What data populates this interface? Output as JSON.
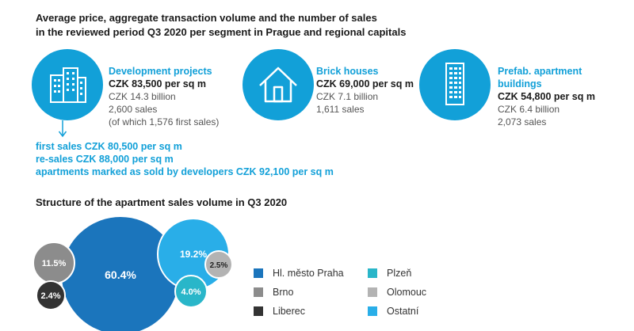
{
  "header": {
    "line1": "Average price, aggregate transaction volume and the number of sales",
    "line2": "in the reviewed period Q3 2020 per segment in Prague and regional capitals"
  },
  "segments": [
    {
      "icon": "office-building-icon",
      "title": "Development projects",
      "price": "CZK 83,500 per sq m",
      "volume": "CZK 14.3 billion",
      "sales": "2,600 sales",
      "note": "(of which 1,576 first sales)"
    },
    {
      "icon": "house-icon",
      "title": "Brick houses",
      "price": "CZK 69,000 per sq m",
      "volume": "CZK 7.1 billion",
      "sales": "1,611 sales"
    },
    {
      "icon": "apartment-tower-icon",
      "title_line1": "Prefab. apartment",
      "title_line2": "buildings",
      "price": "CZK 54,800 per sq m",
      "volume": "CZK 6.4 billion",
      "sales": "2,073 sales"
    }
  ],
  "development_details": [
    "first sales CZK 80,500 per sq m",
    "re-sales CZK 88,000 per sq m",
    "apartments marked as sold by developers CZK 92,100 per sq m"
  ],
  "colors": {
    "accent": "#12a0d8",
    "praha": "#1b75bc",
    "brno": "#8c8c8c",
    "liberec": "#333333",
    "plzen": "#29b6c9",
    "olomouc": "#b3b3b3",
    "ostatni": "#29aee8"
  },
  "chart_data": {
    "type": "bubble",
    "title": "Structure of the apartment sales volume in Q3 2020",
    "series": [
      {
        "name": "Hl. město Praha",
        "value": 60.4,
        "label": "60.4%",
        "color": "#1b75bc"
      },
      {
        "name": "Brno",
        "value": 11.5,
        "label": "11.5%",
        "color": "#8c8c8c"
      },
      {
        "name": "Liberec",
        "value": 2.4,
        "label": "2.4%",
        "color": "#333333"
      },
      {
        "name": "Plzeň",
        "value": 4.0,
        "label": "4.0%",
        "color": "#29b6c9"
      },
      {
        "name": "Olomouc",
        "value": 2.5,
        "label": "2.5%",
        "color": "#b3b3b3"
      },
      {
        "name": "Ostatní",
        "value": 19.2,
        "label": "19.2%",
        "color": "#29aee8"
      }
    ]
  }
}
